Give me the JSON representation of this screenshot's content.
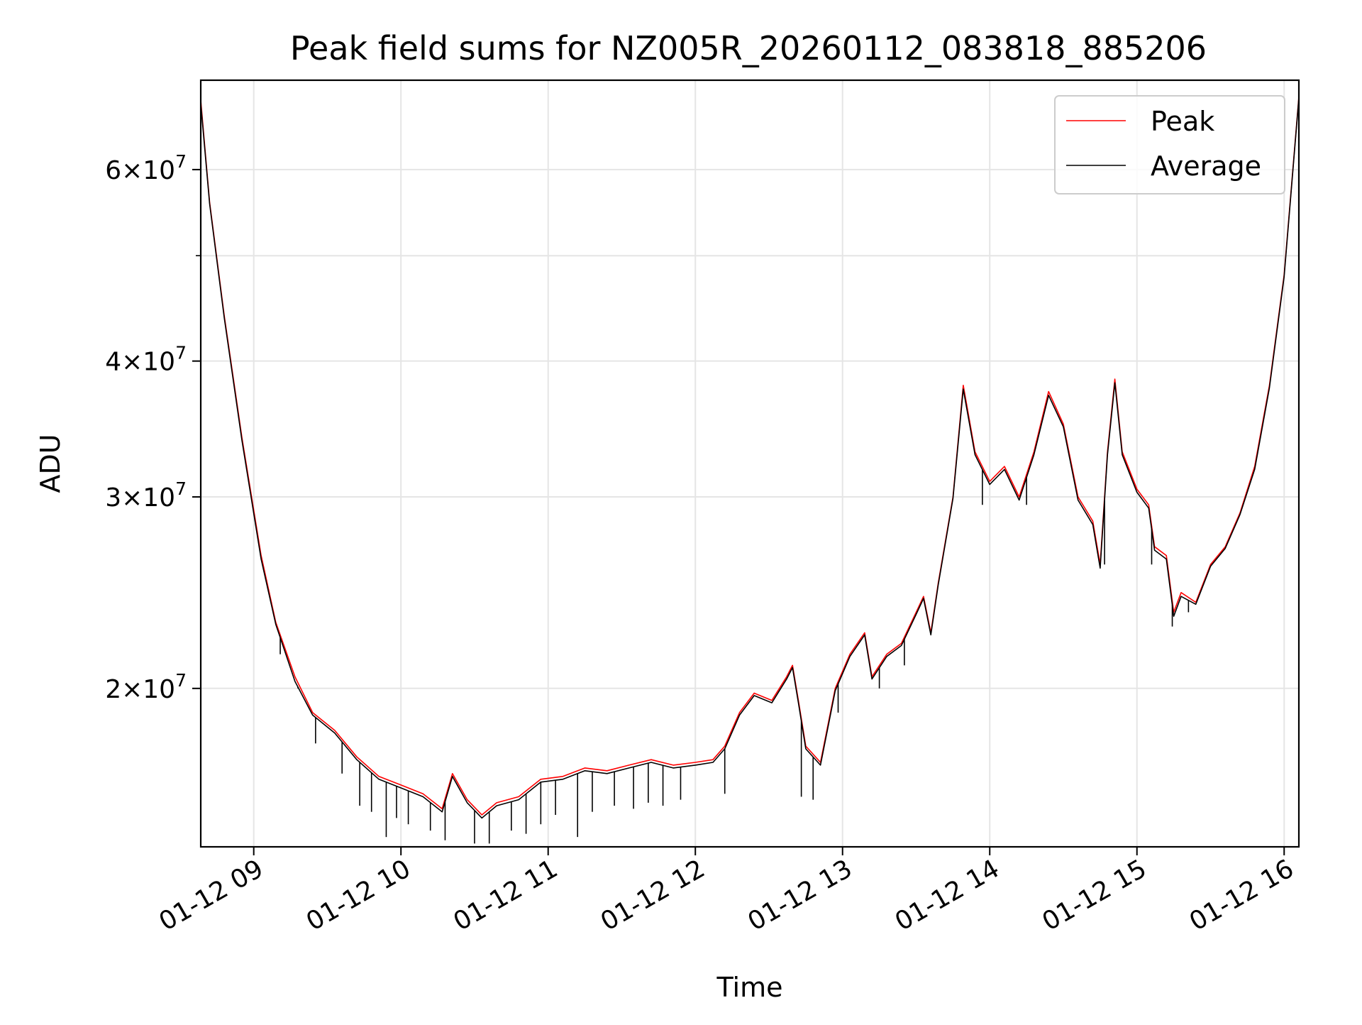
{
  "chart_data": {
    "type": "line",
    "title": "Peak field sums for NZ005R_20260112_083818_885206",
    "xlabel": "Time",
    "ylabel": "ADU",
    "y_scale": "log",
    "xlim_hours": [
      8.64,
      16.1
    ],
    "ylim": [
      14300000,
      72500000
    ],
    "x_ticks": [
      {
        "hour": 9,
        "label": "01-12 09"
      },
      {
        "hour": 10,
        "label": "01-12 10"
      },
      {
        "hour": 11,
        "label": "01-12 11"
      },
      {
        "hour": 12,
        "label": "01-12 12"
      },
      {
        "hour": 13,
        "label": "01-12 13"
      },
      {
        "hour": 14,
        "label": "01-12 14"
      },
      {
        "hour": 15,
        "label": "01-12 15"
      },
      {
        "hour": 16,
        "label": "01-12 16"
      }
    ],
    "y_major_ticks": [
      {
        "value": 20000000,
        "mantissa": "2",
        "base": "10",
        "exp": "7"
      },
      {
        "value": 30000000,
        "mantissa": "3",
        "base": "10",
        "exp": "7"
      },
      {
        "value": 40000000,
        "mantissa": "4",
        "base": "10",
        "exp": "7"
      },
      {
        "value": 60000000,
        "mantissa": "6",
        "base": "10",
        "exp": "7"
      }
    ],
    "y_minor_ticks": [
      50000000
    ],
    "grid": true,
    "legend": {
      "position": "upper right",
      "entries": [
        "Peak",
        "Average"
      ]
    },
    "series": [
      {
        "name": "Peak",
        "color": "#ff0000",
        "points": [
          [
            8.64,
            69500000
          ],
          [
            8.7,
            56000000
          ],
          [
            8.8,
            44000000
          ],
          [
            8.92,
            34000000
          ],
          [
            9.05,
            26500000
          ],
          [
            9.15,
            23000000
          ],
          [
            9.28,
            20500000
          ],
          [
            9.4,
            19000000
          ],
          [
            9.55,
            18300000
          ],
          [
            9.7,
            17300000
          ],
          [
            9.85,
            16600000
          ],
          [
            10.0,
            16300000
          ],
          [
            10.15,
            16000000
          ],
          [
            10.28,
            15500000
          ],
          [
            10.35,
            16700000
          ],
          [
            10.45,
            15800000
          ],
          [
            10.55,
            15300000
          ],
          [
            10.65,
            15700000
          ],
          [
            10.8,
            15900000
          ],
          [
            10.95,
            16500000
          ],
          [
            11.1,
            16600000
          ],
          [
            11.25,
            16900000
          ],
          [
            11.4,
            16800000
          ],
          [
            11.55,
            17000000
          ],
          [
            11.7,
            17200000
          ],
          [
            11.85,
            17000000
          ],
          [
            12.0,
            17100000
          ],
          [
            12.12,
            17200000
          ],
          [
            12.2,
            17700000
          ],
          [
            12.3,
            19000000
          ],
          [
            12.4,
            19800000
          ],
          [
            12.52,
            19500000
          ],
          [
            12.62,
            20500000
          ],
          [
            12.66,
            21000000
          ],
          [
            12.7,
            19500000
          ],
          [
            12.75,
            17700000
          ],
          [
            12.85,
            17100000
          ],
          [
            12.95,
            20000000
          ],
          [
            13.05,
            21500000
          ],
          [
            13.15,
            22500000
          ],
          [
            13.2,
            20500000
          ],
          [
            13.3,
            21500000
          ],
          [
            13.4,
            22000000
          ],
          [
            13.5,
            23500000
          ],
          [
            13.55,
            24300000
          ],
          [
            13.6,
            22500000
          ],
          [
            13.65,
            25000000
          ],
          [
            13.75,
            30000000
          ],
          [
            13.82,
            38000000
          ],
          [
            13.9,
            33000000
          ],
          [
            14.0,
            31000000
          ],
          [
            14.1,
            32000000
          ],
          [
            14.2,
            30000000
          ],
          [
            14.3,
            33000000
          ],
          [
            14.4,
            37500000
          ],
          [
            14.5,
            35000000
          ],
          [
            14.6,
            30000000
          ],
          [
            14.7,
            28500000
          ],
          [
            14.75,
            26000000
          ],
          [
            14.8,
            33000000
          ],
          [
            14.85,
            38500000
          ],
          [
            14.9,
            33000000
          ],
          [
            15.0,
            30500000
          ],
          [
            15.08,
            29500000
          ],
          [
            15.12,
            27000000
          ],
          [
            15.2,
            26500000
          ],
          [
            15.25,
            23500000
          ],
          [
            15.3,
            24500000
          ],
          [
            15.4,
            24000000
          ],
          [
            15.5,
            26000000
          ],
          [
            15.6,
            27000000
          ],
          [
            15.7,
            29000000
          ],
          [
            15.8,
            32000000
          ],
          [
            15.9,
            38000000
          ],
          [
            16.0,
            48000000
          ],
          [
            16.1,
            70000000
          ]
        ],
        "spikes": []
      },
      {
        "name": "Average",
        "color": "#000000",
        "points": [
          [
            8.64,
            69000000
          ],
          [
            8.7,
            55800000
          ],
          [
            8.8,
            43800000
          ],
          [
            8.92,
            33800000
          ],
          [
            9.05,
            26300000
          ],
          [
            9.15,
            22900000
          ],
          [
            9.28,
            20300000
          ],
          [
            9.4,
            18900000
          ],
          [
            9.55,
            18200000
          ],
          [
            9.7,
            17200000
          ],
          [
            9.85,
            16500000
          ],
          [
            10.0,
            16200000
          ],
          [
            10.15,
            15900000
          ],
          [
            10.28,
            15400000
          ],
          [
            10.35,
            16600000
          ],
          [
            10.45,
            15700000
          ],
          [
            10.55,
            15200000
          ],
          [
            10.65,
            15600000
          ],
          [
            10.8,
            15800000
          ],
          [
            10.95,
            16400000
          ],
          [
            11.1,
            16500000
          ],
          [
            11.25,
            16800000
          ],
          [
            11.4,
            16700000
          ],
          [
            11.55,
            16900000
          ],
          [
            11.7,
            17100000
          ],
          [
            11.85,
            16900000
          ],
          [
            12.0,
            17000000
          ],
          [
            12.12,
            17100000
          ],
          [
            12.2,
            17600000
          ],
          [
            12.3,
            18900000
          ],
          [
            12.4,
            19700000
          ],
          [
            12.52,
            19400000
          ],
          [
            12.62,
            20400000
          ],
          [
            12.66,
            20900000
          ],
          [
            12.7,
            19400000
          ],
          [
            12.75,
            17600000
          ],
          [
            12.85,
            17000000
          ],
          [
            12.95,
            19900000
          ],
          [
            13.05,
            21400000
          ],
          [
            13.15,
            22400000
          ],
          [
            13.2,
            20400000
          ],
          [
            13.3,
            21400000
          ],
          [
            13.4,
            21900000
          ],
          [
            13.5,
            23400000
          ],
          [
            13.55,
            24200000
          ],
          [
            13.6,
            22400000
          ],
          [
            13.65,
            24900000
          ],
          [
            13.75,
            29900000
          ],
          [
            13.82,
            37700000
          ],
          [
            13.9,
            32800000
          ],
          [
            14.0,
            30800000
          ],
          [
            14.1,
            31800000
          ],
          [
            14.2,
            29800000
          ],
          [
            14.3,
            32800000
          ],
          [
            14.4,
            37200000
          ],
          [
            14.5,
            34800000
          ],
          [
            14.6,
            29800000
          ],
          [
            14.7,
            28300000
          ],
          [
            14.75,
            25800000
          ],
          [
            14.8,
            32800000
          ],
          [
            14.85,
            38200000
          ],
          [
            14.9,
            32800000
          ],
          [
            15.0,
            30300000
          ],
          [
            15.08,
            29300000
          ],
          [
            15.12,
            26800000
          ],
          [
            15.2,
            26300000
          ],
          [
            15.25,
            23300000
          ],
          [
            15.3,
            24300000
          ],
          [
            15.4,
            23900000
          ],
          [
            15.5,
            25900000
          ],
          [
            15.6,
            26900000
          ],
          [
            15.7,
            28900000
          ],
          [
            15.8,
            31800000
          ],
          [
            15.9,
            37800000
          ],
          [
            16.0,
            47800000
          ],
          [
            16.1,
            69800000
          ]
        ],
        "spikes": [
          [
            9.18,
            21500000
          ],
          [
            9.3,
            20000000
          ],
          [
            9.42,
            17800000
          ],
          [
            9.6,
            16700000
          ],
          [
            9.72,
            15600000
          ],
          [
            9.8,
            15400000
          ],
          [
            9.9,
            14600000
          ],
          [
            9.97,
            15200000
          ],
          [
            10.05,
            15000000
          ],
          [
            10.2,
            14800000
          ],
          [
            10.3,
            14500000
          ],
          [
            10.5,
            14400000
          ],
          [
            10.6,
            14400000
          ],
          [
            10.75,
            14800000
          ],
          [
            10.85,
            14700000
          ],
          [
            10.95,
            15000000
          ],
          [
            11.05,
            15300000
          ],
          [
            11.2,
            14600000
          ],
          [
            11.3,
            15400000
          ],
          [
            11.45,
            15600000
          ],
          [
            11.58,
            15500000
          ],
          [
            11.68,
            15700000
          ],
          [
            11.78,
            15600000
          ],
          [
            11.9,
            15800000
          ],
          [
            12.2,
            16000000
          ],
          [
            12.72,
            15900000
          ],
          [
            12.8,
            15800000
          ],
          [
            12.97,
            19000000
          ],
          [
            13.25,
            20000000
          ],
          [
            13.42,
            21000000
          ],
          [
            13.95,
            29500000
          ],
          [
            14.25,
            29500000
          ],
          [
            14.78,
            26000000
          ],
          [
            15.1,
            26000000
          ],
          [
            15.24,
            22800000
          ],
          [
            15.35,
            23500000
          ]
        ]
      }
    ]
  }
}
